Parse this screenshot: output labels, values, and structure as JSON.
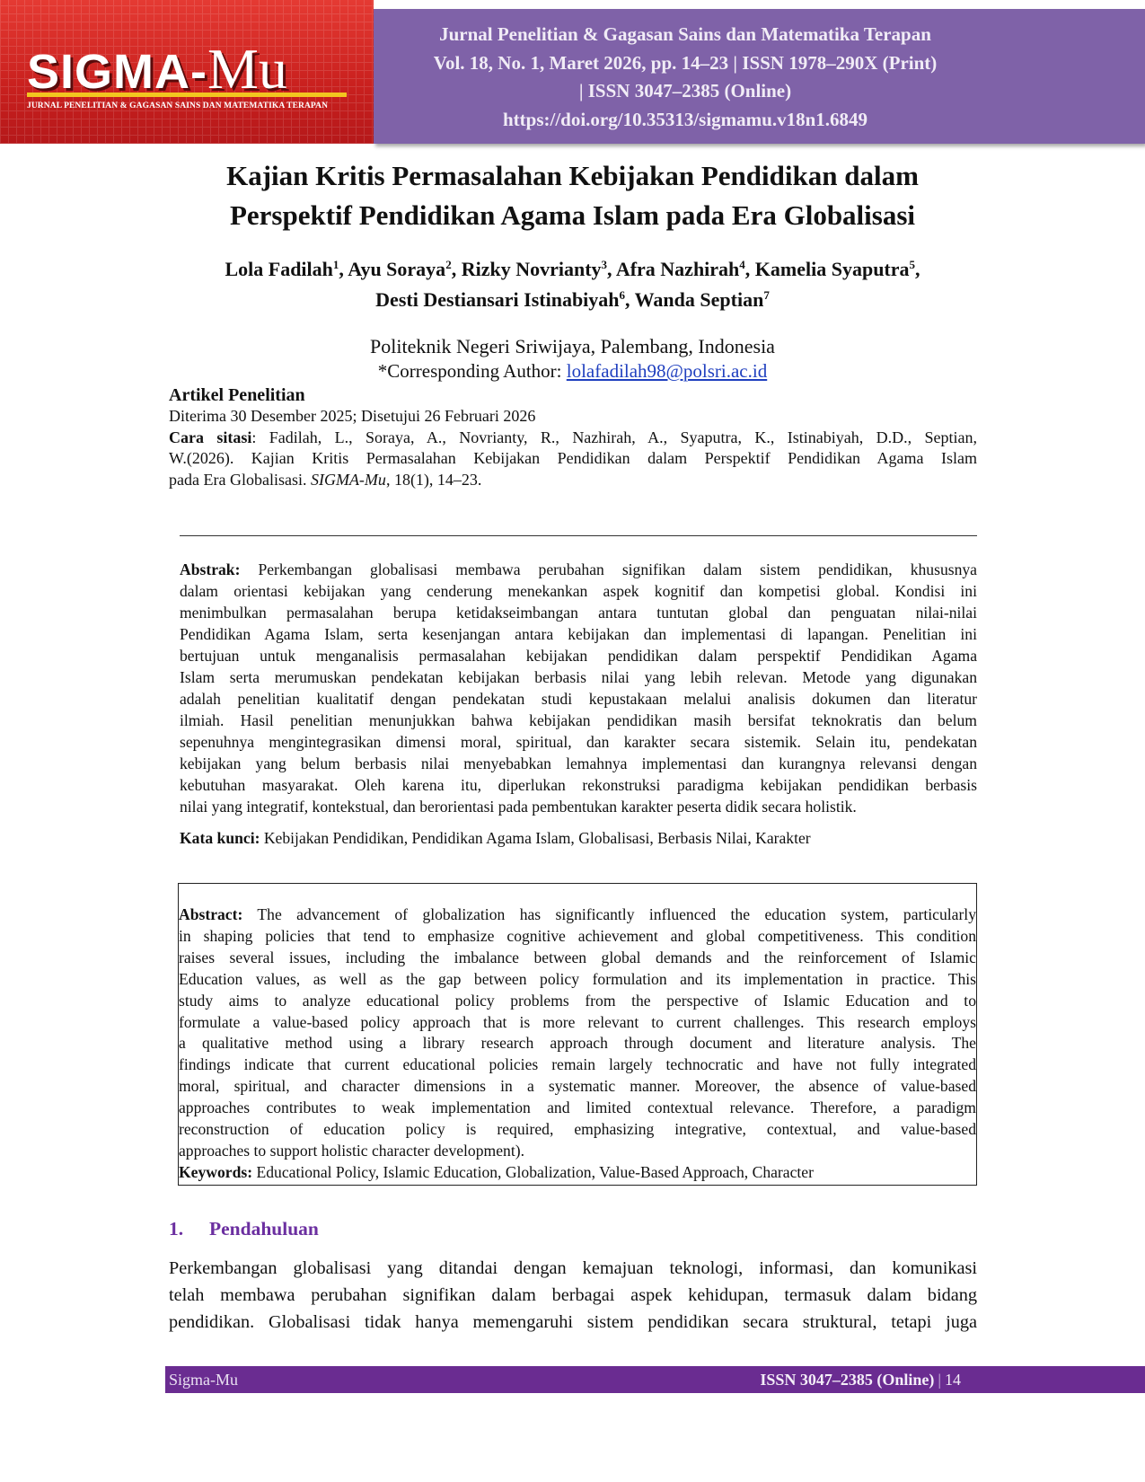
{
  "header": {
    "logo": {
      "name1": "SIGMA-",
      "name2": "Mu",
      "subtitle": "JURNAL PENELITIAN & GAGASAN SAINS DAN MATEMATIKA TERAPAN"
    },
    "lines": [
      "Jurnal Penelitian & Gagasan Sains dan Matematika Terapan",
      "Vol. 18, No. 1, Maret 2026, pp. 14–23 | ISSN 1978–290X (Print)",
      "| ISSN 3047–2385 (Online)",
      "https://doi.org/10.35313/sigmamu.v18n1.6849"
    ]
  },
  "title": [
    "Kajian Kritis Permasalahan Kebijakan Pendidikan dalam",
    "Perspektif Pendidikan Agama Islam pada Era Globalisasi"
  ],
  "authors": [
    [
      {
        "name": "Lola Fadilah",
        "sup": "1",
        "sep": ", "
      },
      {
        "name": "Ayu Soraya",
        "sup": "2",
        "sep": ", "
      },
      {
        "name": "Rizky Novrianty",
        "sup": "3",
        "sep": ", "
      },
      {
        "name": "Afra Nazhirah",
        "sup": "4",
        "sep": ", "
      },
      {
        "name": "Kamelia Syaputra",
        "sup": "5",
        "sep": ","
      }
    ],
    [
      {
        "name": "Desti Destiansari Istinabiyah",
        "sup": "6",
        "sep": ", "
      },
      {
        "name": "Wanda Septian",
        "sup": "7"
      }
    ]
  ],
  "affiliation": "Politeknik Negeri Sriwijaya, Palembang, Indonesia",
  "corresponding": {
    "label": "*Corresponding Author:",
    "email": "lolafadilah98@polsri.ac.id"
  },
  "article_type": "Artikel Penelitian",
  "dates": "Diterima 30 Desember 2025; Disetujui 26 Februari 2026",
  "citation": {
    "label": "Cara sitasi",
    "lines": [
      ": Fadilah, L., Soraya, A., Novrianty, R., Nazhirah, A., Syaputra, K., Istinabiyah, D.D., Septian,",
      "W.(2026).  Kajian Kritis Permasalahan Kebijakan Pendidikan dalam Perspektif Pendidikan Agama Islam",
      "pada Era Globalisasi. "
    ],
    "journal": "SIGMA-Mu",
    "tail": ", 18(1), 14–23."
  },
  "abstrak": {
    "label": "Abstrak:",
    "lines": [
      " Perkembangan globalisasi membawa perubahan signifikan dalam sistem pendidikan, khususnya",
      "dalam orientasi kebijakan yang cenderung menekankan aspek kognitif dan kompetisi global. Kondisi ini",
      "menimbulkan permasalahan berupa ketidakseimbangan antara tuntutan global dan penguatan nilai-nilai",
      "Pendidikan Agama Islam, serta kesenjangan antara kebijakan dan implementasi di lapangan. Penelitian ini",
      "bertujuan untuk menganalisis permasalahan kebijakan pendidikan dalam perspektif Pendidikan Agama",
      "Islam serta merumuskan pendekatan kebijakan berbasis nilai yang lebih relevan. Metode yang digunakan",
      "adalah penelitian kualitatif dengan pendekatan studi kepustakaan melalui analisis dokumen dan literatur",
      "ilmiah. Hasil penelitian menunjukkan bahwa kebijakan pendidikan masih bersifat teknokratis dan belum",
      "sepenuhnya mengintegrasikan dimensi moral, spiritual, dan karakter secara sistemik. Selain itu, pendekatan",
      "kebijakan yang belum berbasis nilai menyebabkan lemahnya implementasi dan kurangnya relevansi dengan",
      "kebutuhan masyarakat. Oleh karena itu, diperlukan rekonstruksi paradigma kebijakan pendidikan berbasis",
      "nilai yang integratif, kontekstual, dan berorientasi pada pembentukan karakter peserta didik secara holistik."
    ],
    "keywords_label": "Kata kunci:",
    "keywords": " Kebijakan Pendidikan, Pendidikan Agama Islam, Globalisasi, Berbasis Nilai, Karakter"
  },
  "abstract": {
    "label": "Abstract:",
    "lines": [
      " The advancement of globalization has significantly influenced the education system, particularly",
      "in shaping policies that tend to emphasize cognitive achievement and global competitiveness. This condition",
      "raises several issues, including the imbalance between global demands and the reinforcement of Islamic",
      "Education values, as well as the gap between policy formulation and its implementation in practice. This",
      "study aims to analyze educational policy problems from the perspective of Islamic Education and to",
      "formulate a value-based policy approach that is more relevant to current challenges. This research employs",
      "a qualitative method using a library research approach through document and literature analysis. The",
      "findings indicate that current educational policies remain largely technocratic and have not fully integrated",
      "moral, spiritual, and character dimensions in a systematic manner. Moreover, the absence of value-based",
      "approaches contributes to weak implementation and limited contextual relevance. Therefore, a paradigm",
      "reconstruction of education policy is required, emphasizing integrative, contextual, and value-based",
      "approaches to support holistic character development)."
    ],
    "keywords_label": "Keywords:",
    "keywords": " Educational Policy, Islamic Education, Globalization, Value-Based Approach, Character"
  },
  "section": {
    "number": "1.",
    "title": "Pendahuluan",
    "lines": [
      "Perkembangan globalisasi yang ditandai dengan kemajuan teknologi, informasi, dan komunikasi",
      "telah membawa perubahan signifikan dalam berbagai aspek kehidupan, termasuk dalam bidang",
      "pendidikan. Globalisasi tidak hanya memengaruhi sistem pendidikan secara struktural, tetapi juga"
    ]
  },
  "footer": {
    "left": "Sigma-Mu",
    "issn": "ISSN 3047–2385 (Online)",
    "separator": "|",
    "page": "14"
  }
}
